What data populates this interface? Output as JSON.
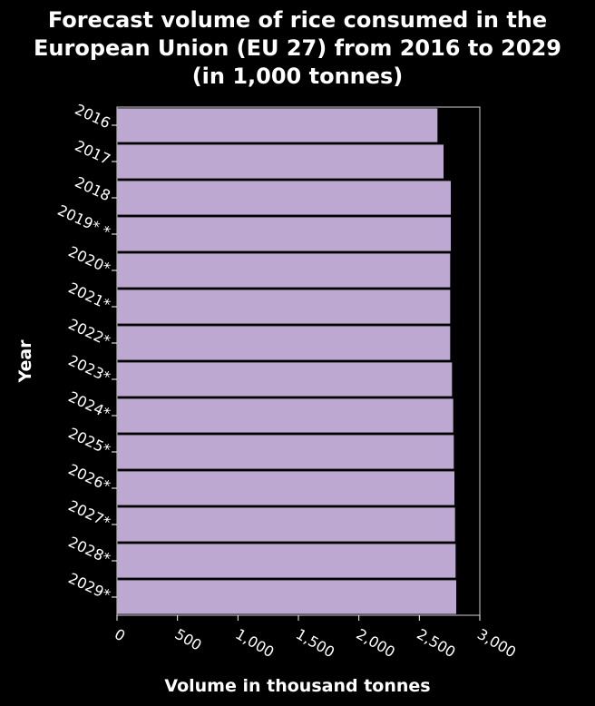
{
  "chart_data": {
    "type": "bar",
    "orientation": "horizontal",
    "title_lines": [
      "Forecast volume of rice consumed in the",
      "European Union (EU 27) from 2016 to 2029",
      "(in 1,000 tonnes)"
    ],
    "xlabel": "Volume in thousand tonnes",
    "ylabel": "Year",
    "categories": [
      "2016",
      "2017",
      "2018",
      "2019* *",
      "2020*",
      "2021*",
      "2022*",
      "2023*",
      "2024*",
      "2025*",
      "2026*",
      "2027*",
      "2028*",
      "2029*"
    ],
    "values": [
      2650,
      2700,
      2760,
      2760,
      2755,
      2755,
      2755,
      2770,
      2780,
      2785,
      2790,
      2795,
      2800,
      2805
    ],
    "xlim": [
      0,
      3000
    ],
    "xticks": [
      0,
      500,
      1000,
      1500,
      2000,
      2500,
      3000
    ],
    "xtick_labels": [
      "0",
      "500",
      "1,000",
      "1,500",
      "2,000",
      "2,500",
      "3,000"
    ],
    "grid": false,
    "colors": {
      "bar": "#bca8d0",
      "background": "#000000",
      "text": "#ffffff",
      "axis": "#ffffff"
    }
  }
}
